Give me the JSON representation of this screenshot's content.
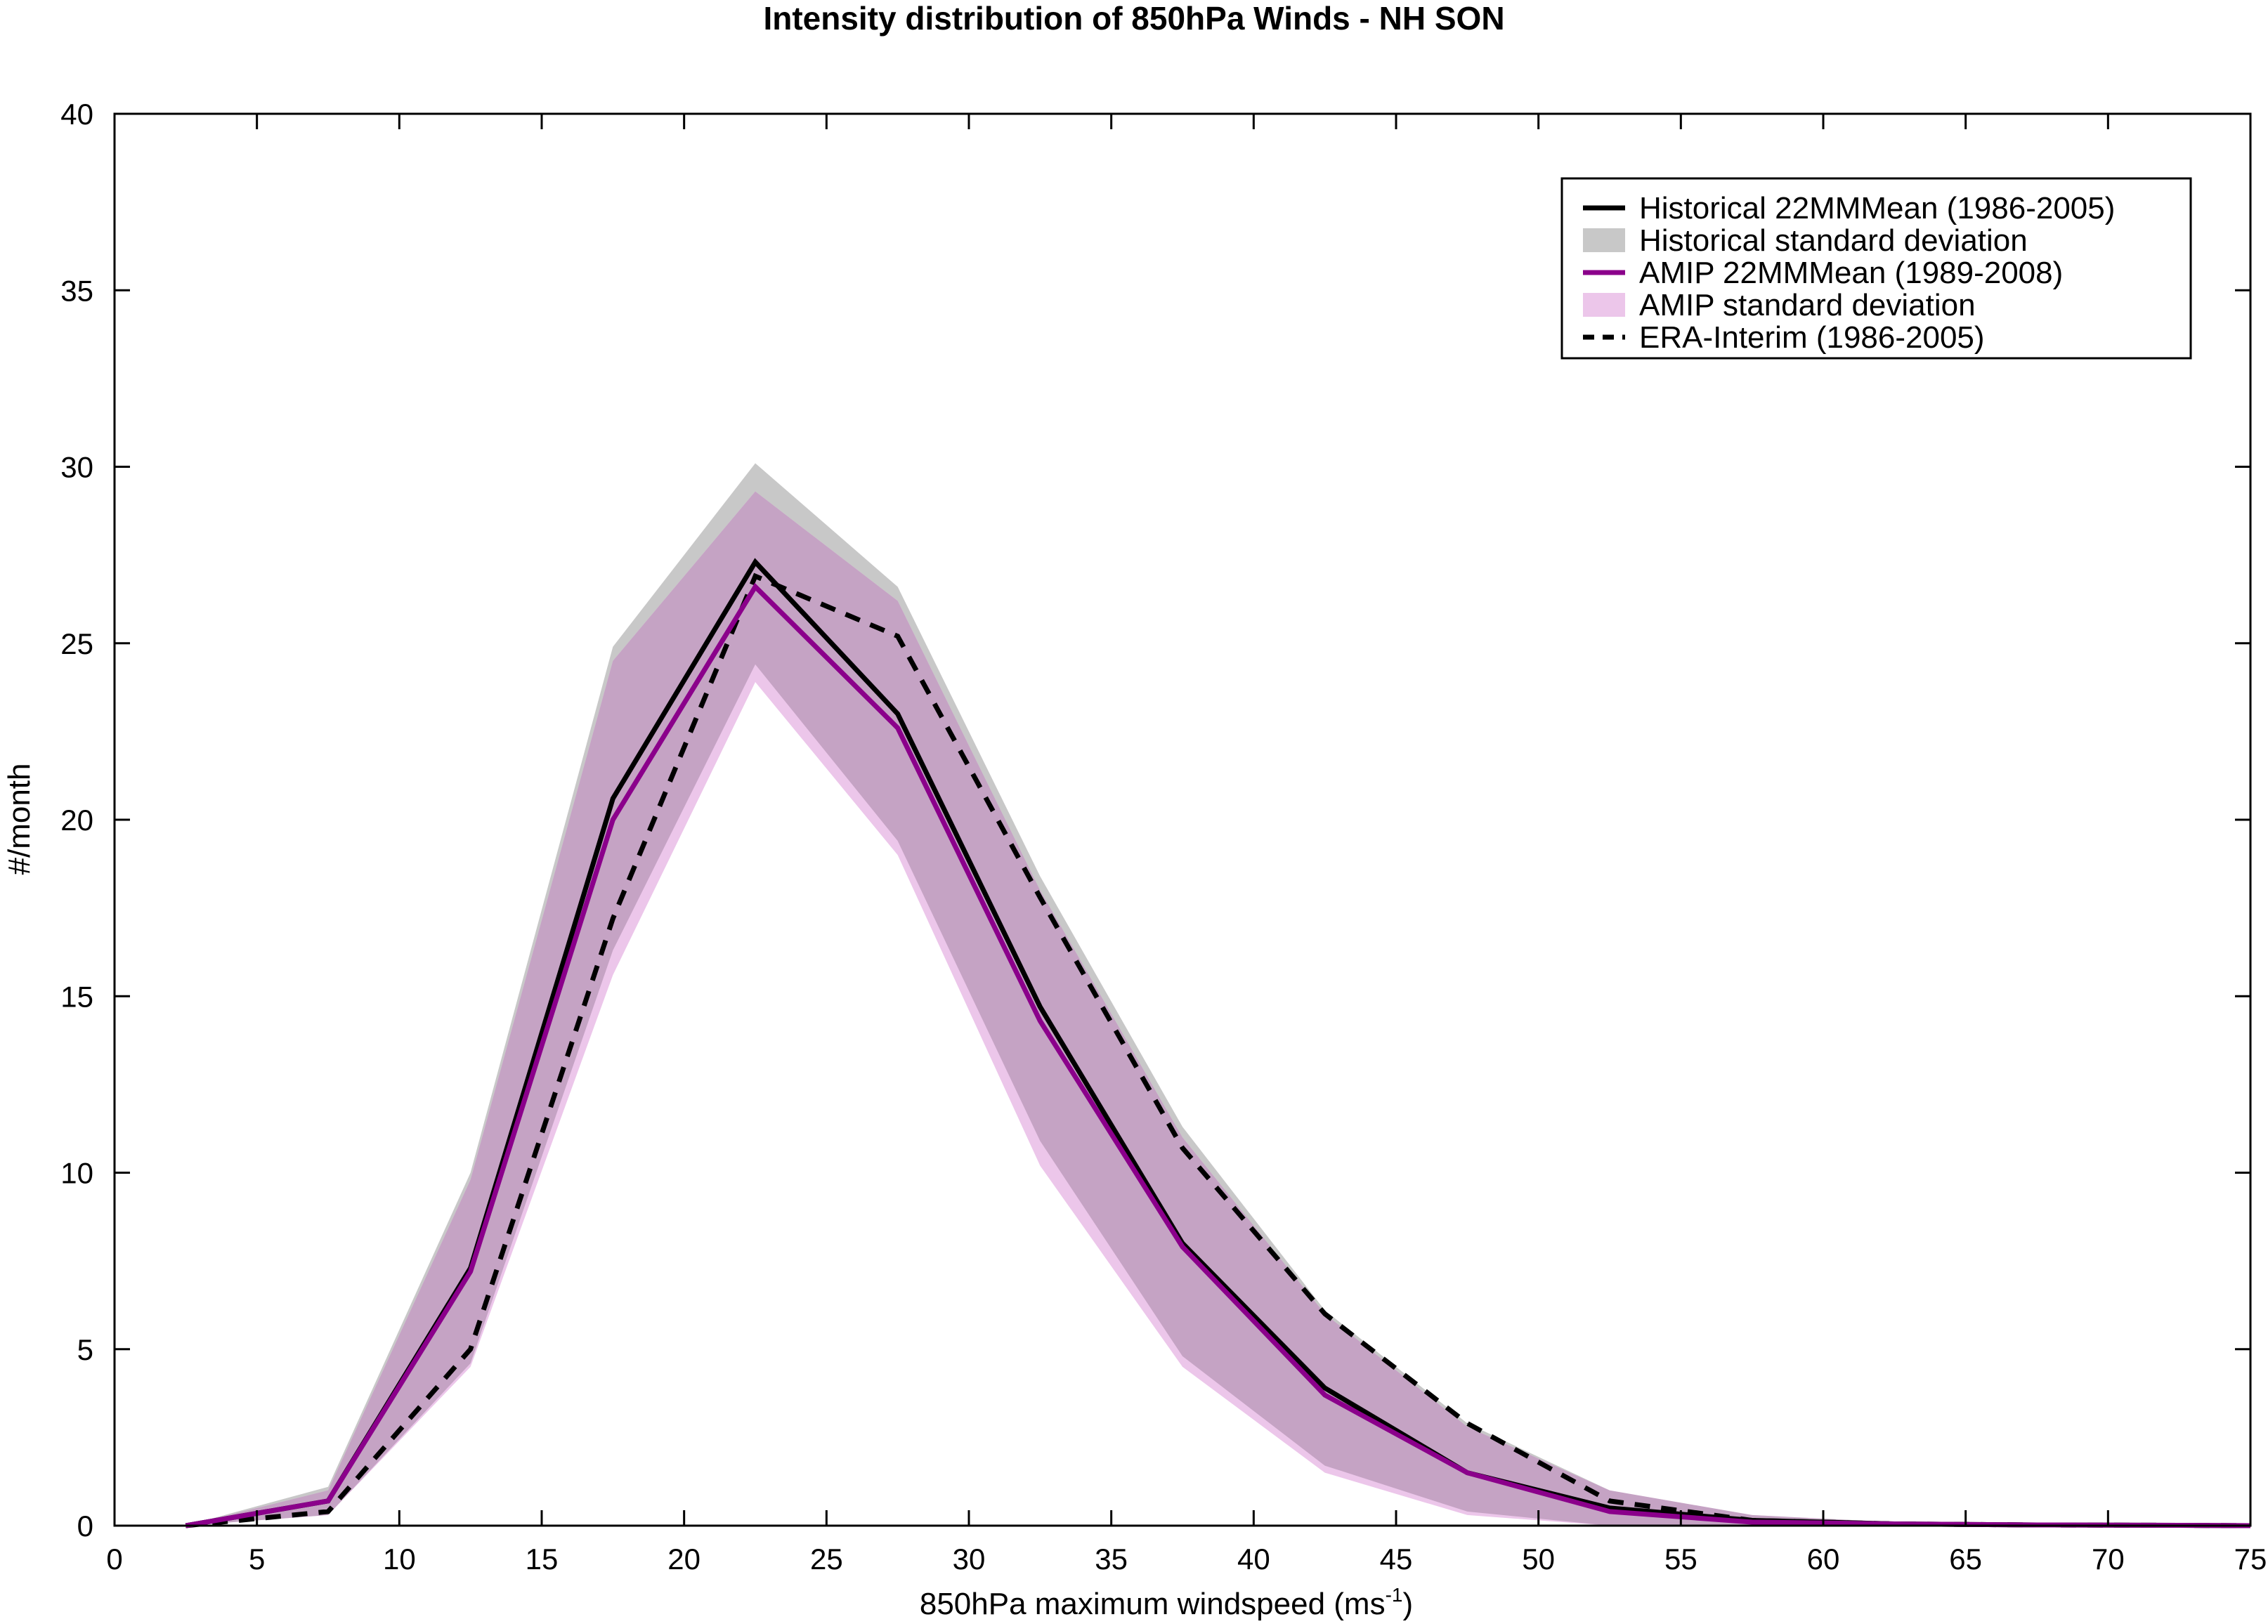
{
  "chart_data": {
    "type": "line",
    "title": "Intensity distribution of 850hPa Winds - NH SON",
    "xlabel": "850hPa maximum windspeed (ms",
    "xlabel_sup": "-1",
    "xlabel_close": ")",
    "ylabel": "#/month",
    "xlim": [
      0,
      75
    ],
    "ylim": [
      0,
      40
    ],
    "xticks": [
      "0",
      "5",
      "10",
      "15",
      "20",
      "25",
      "30",
      "35",
      "40",
      "45",
      "50",
      "55",
      "60",
      "65",
      "70",
      "75"
    ],
    "yticks": [
      "0",
      "5",
      "10",
      "15",
      "20",
      "25",
      "30",
      "35",
      "40"
    ],
    "grid": false,
    "legend_position": "top-right",
    "x": [
      2.5,
      7.5,
      12.5,
      17.5,
      22.5,
      27.5,
      32.5,
      37.5,
      42.5,
      47.5,
      52.5,
      57.5,
      62.5,
      67.5,
      72.5,
      75
    ],
    "series": [
      {
        "name": "Historical 22MMMean (1986-2005)",
        "kind": "line",
        "color": "#000000",
        "dash": "solid",
        "values": [
          0,
          0.7,
          7.3,
          20.6,
          27.3,
          23.0,
          14.7,
          8.0,
          3.9,
          1.5,
          0.5,
          0.15,
          0.05,
          0.02,
          0.01,
          0
        ]
      },
      {
        "name": "Historical standard deviation",
        "kind": "band",
        "color": "#c8c8c8",
        "upper": [
          0,
          1.1,
          10.0,
          24.9,
          30.1,
          26.6,
          18.4,
          11.3,
          6.1,
          2.9,
          1.0,
          0.3,
          0.1,
          0.05,
          0.02,
          0
        ],
        "lower": [
          0,
          0.3,
          4.6,
          16.3,
          24.4,
          19.4,
          10.9,
          4.8,
          1.7,
          0.4,
          0.0,
          0.0,
          0.0,
          0.0,
          0.0,
          0
        ]
      },
      {
        "name": "AMIP 22MMMean (1989-2008)",
        "kind": "line",
        "color": "#8b008b",
        "dash": "solid",
        "values": [
          0,
          0.7,
          7.2,
          20.0,
          26.6,
          22.6,
          14.3,
          7.9,
          3.7,
          1.5,
          0.4,
          0.1,
          0.05,
          0.02,
          0.01,
          0
        ]
      },
      {
        "name": "AMIP standard deviation",
        "kind": "band",
        "color": "#ecc6ea",
        "upper": [
          0,
          1.0,
          9.8,
          24.5,
          29.3,
          26.2,
          18.0,
          11.0,
          6.0,
          2.8,
          1.0,
          0.3,
          0.1,
          0.05,
          0.02,
          0
        ],
        "lower": [
          0,
          0.3,
          4.5,
          15.6,
          23.9,
          19.0,
          10.2,
          4.5,
          1.5,
          0.3,
          0.0,
          0.0,
          0.0,
          0.0,
          0.0,
          0
        ]
      },
      {
        "name": "ERA-Interim (1986-2005)",
        "kind": "line",
        "color": "#000000",
        "dash": "dashed",
        "values": [
          0,
          0.4,
          5.0,
          17.2,
          26.9,
          25.2,
          17.8,
          10.7,
          6.0,
          2.9,
          0.7,
          0.15,
          0.05,
          0.02,
          0.01,
          0
        ]
      }
    ],
    "overlap_color": "#c5a3c4"
  }
}
